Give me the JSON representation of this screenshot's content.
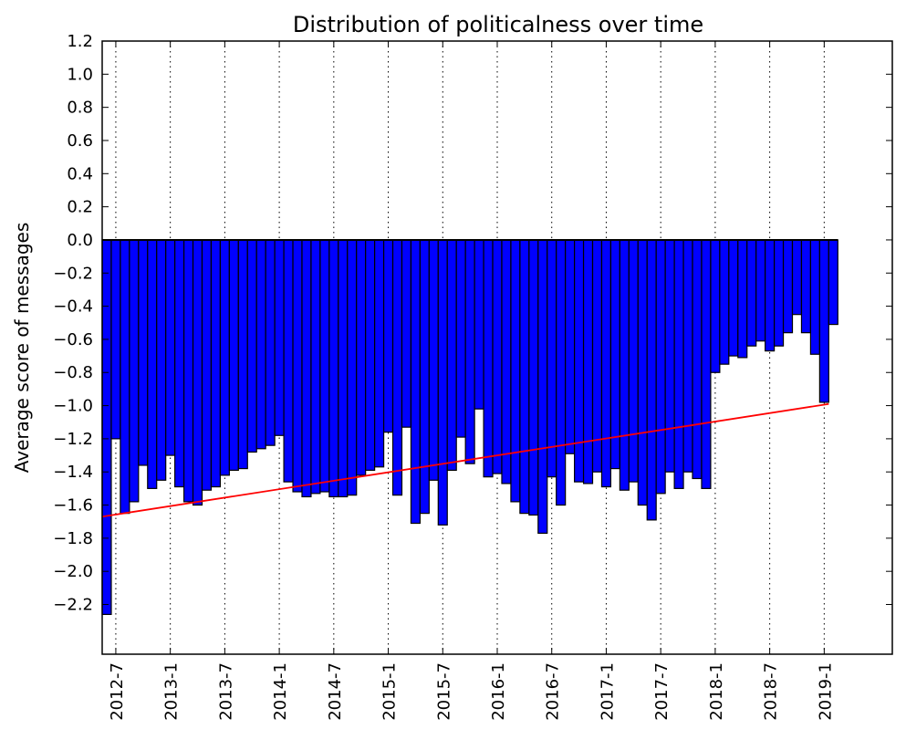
{
  "chart_data": {
    "type": "bar",
    "title": "Distribution of politicalness over time",
    "xlabel": "",
    "ylabel": "Average score of messages",
    "ylim": [
      -2.5,
      1.2
    ],
    "x_start": "2012-6",
    "x_end": "2019-8",
    "grid": "vertical-dotted",
    "bar_color": "#0000ff",
    "trend_color": "#ff0000",
    "x_ticks": [
      "2012-7",
      "2013-1",
      "2013-7",
      "2014-1",
      "2014-7",
      "2015-1",
      "2015-7",
      "2016-1",
      "2016-7",
      "2017-1",
      "2017-7",
      "2018-1",
      "2018-7",
      "2019-1"
    ],
    "y_ticks": [
      "1.2",
      "1.0",
      "0.8",
      "0.6",
      "0.4",
      "0.2",
      "0.0",
      "−0.2",
      "−0.4",
      "−0.6",
      "−0.8",
      "−1.0",
      "−1.2",
      "−1.4",
      "−1.6",
      "−1.8",
      "−2.0",
      "−2.2"
    ],
    "categories": [
      "2012-6",
      "2012-7",
      "2012-8",
      "2012-9",
      "2012-10",
      "2012-11",
      "2012-12",
      "2013-1",
      "2013-2",
      "2013-3",
      "2013-4",
      "2013-5",
      "2013-6",
      "2013-7",
      "2013-8",
      "2013-9",
      "2013-10",
      "2013-11",
      "2013-12",
      "2014-1",
      "2014-2",
      "2014-3",
      "2014-4",
      "2014-5",
      "2014-6",
      "2014-7",
      "2014-8",
      "2014-9",
      "2014-10",
      "2014-11",
      "2014-12",
      "2015-1",
      "2015-2",
      "2015-3",
      "2015-4",
      "2015-5",
      "2015-6",
      "2015-7",
      "2015-8",
      "2015-9",
      "2015-10",
      "2015-11",
      "2015-12",
      "2016-1",
      "2016-2",
      "2016-3",
      "2016-4",
      "2016-5",
      "2016-6",
      "2016-7",
      "2016-8",
      "2016-9",
      "2016-10",
      "2016-11",
      "2016-12",
      "2017-1",
      "2017-2",
      "2017-3",
      "2017-4",
      "2017-5",
      "2017-6",
      "2017-7",
      "2017-8",
      "2017-9",
      "2017-10",
      "2017-11",
      "2017-12",
      "2018-1",
      "2018-2",
      "2018-3",
      "2018-4",
      "2018-5",
      "2018-6",
      "2018-7",
      "2018-8",
      "2018-9",
      "2018-10",
      "2018-11",
      "2018-12",
      "2019-1",
      "2019-2"
    ],
    "values": [
      -2.26,
      -1.2,
      -1.65,
      -1.58,
      -1.36,
      -1.5,
      -1.45,
      -1.3,
      -1.49,
      -1.58,
      -1.6,
      -1.51,
      -1.49,
      -1.42,
      -1.39,
      -1.38,
      -1.28,
      -1.26,
      -1.24,
      -1.18,
      -1.46,
      -1.52,
      -1.55,
      -1.53,
      -1.52,
      -1.55,
      -1.55,
      -1.54,
      -1.42,
      -1.39,
      -1.37,
      -1.16,
      -1.54,
      -1.13,
      -1.71,
      -1.65,
      -1.45,
      -1.72,
      -1.39,
      -1.19,
      -1.35,
      -1.02,
      -1.43,
      -1.41,
      -1.47,
      -1.58,
      -1.65,
      -1.66,
      -1.77,
      -1.43,
      -1.6,
      -1.29,
      -1.46,
      -1.47,
      -1.4,
      -1.49,
      -1.38,
      -1.51,
      -1.46,
      -1.6,
      -1.69,
      -1.53,
      -1.4,
      -1.5,
      -1.4,
      -1.44,
      -1.5,
      -0.8,
      -0.75,
      -0.7,
      -0.71,
      -0.64,
      -0.61,
      -0.67,
      -0.64,
      -0.56,
      -0.45,
      -0.56,
      -0.69,
      -0.98,
      -0.51
    ],
    "trend_line": {
      "y_start": -1.67,
      "y_end": -0.99
    }
  }
}
